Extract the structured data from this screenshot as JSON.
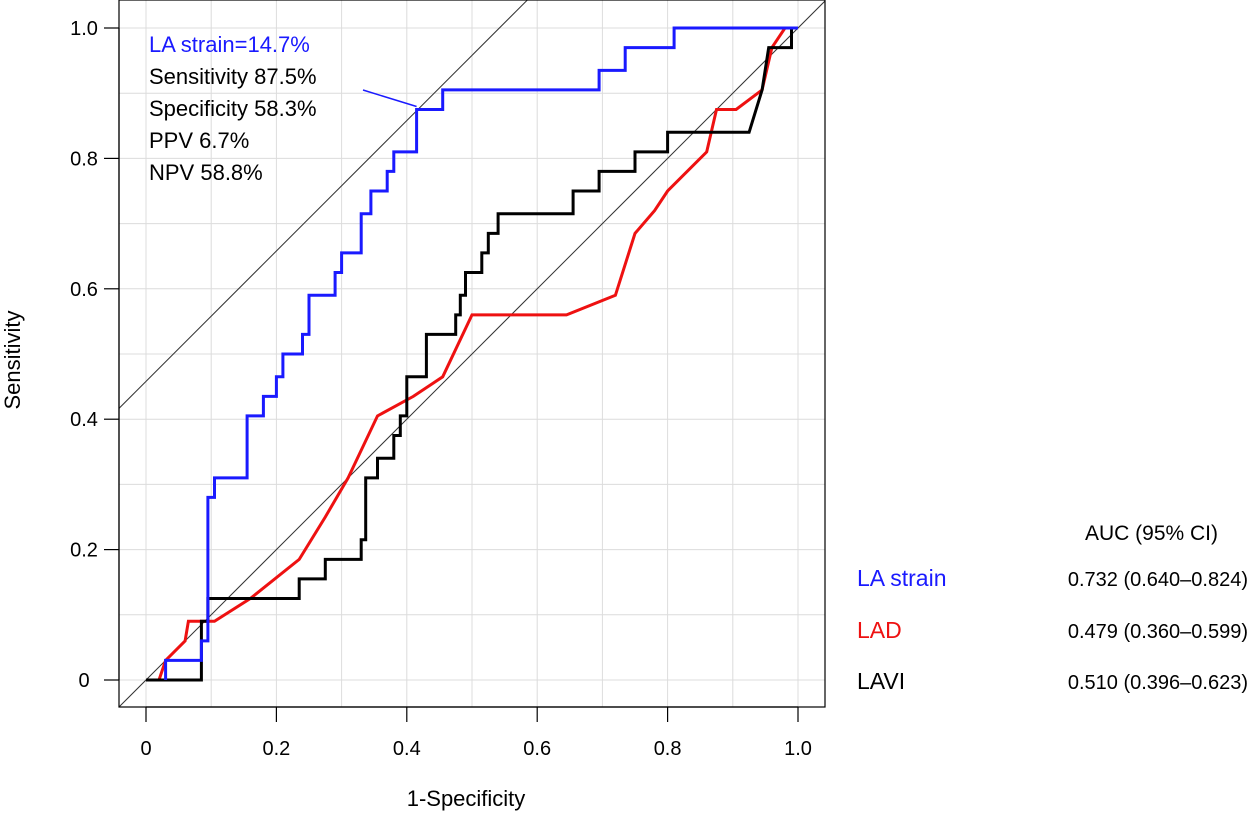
{
  "chart_data": {
    "type": "line",
    "title": "",
    "xlabel": "1-Specificity",
    "ylabel": "Sensitivity",
    "xlim": [
      0,
      1
    ],
    "ylim": [
      0,
      1
    ],
    "grid": true,
    "x_ticks": [
      "0",
      "0.2",
      "0.4",
      "0.6",
      "0.8",
      "1.0"
    ],
    "y_ticks": [
      "0",
      "0.2",
      "0.4",
      "0.6",
      "0.8",
      "1.0"
    ],
    "x_tick_values": [
      0,
      0.2,
      0.4,
      0.6,
      0.8,
      1.0
    ],
    "y_tick_values": [
      0,
      0.2,
      0.4,
      0.6,
      0.8,
      1.0
    ],
    "reference_lines": [
      {
        "name": "diagonal",
        "intercept": 0,
        "slope": 1
      },
      {
        "name": "tangent",
        "intercept": 0.458,
        "slope": 1
      }
    ],
    "series": [
      {
        "name": "LA strain",
        "color": "#1a1aff",
        "points": [
          [
            0.03,
            0
          ],
          [
            0.03,
            0.03
          ],
          [
            0.085,
            0.03
          ],
          [
            0.085,
            0.06
          ],
          [
            0.095,
            0.06
          ],
          [
            0.095,
            0.28
          ],
          [
            0.105,
            0.28
          ],
          [
            0.105,
            0.31
          ],
          [
            0.155,
            0.31
          ],
          [
            0.155,
            0.405
          ],
          [
            0.18,
            0.405
          ],
          [
            0.18,
            0.435
          ],
          [
            0.2,
            0.435
          ],
          [
            0.2,
            0.465
          ],
          [
            0.21,
            0.465
          ],
          [
            0.21,
            0.5
          ],
          [
            0.24,
            0.5
          ],
          [
            0.24,
            0.53
          ],
          [
            0.25,
            0.53
          ],
          [
            0.25,
            0.59
          ],
          [
            0.29,
            0.59
          ],
          [
            0.29,
            0.625
          ],
          [
            0.3,
            0.625
          ],
          [
            0.3,
            0.655
          ],
          [
            0.33,
            0.655
          ],
          [
            0.33,
            0.715
          ],
          [
            0.345,
            0.715
          ],
          [
            0.345,
            0.75
          ],
          [
            0.37,
            0.75
          ],
          [
            0.37,
            0.78
          ],
          [
            0.38,
            0.78
          ],
          [
            0.38,
            0.81
          ],
          [
            0.415,
            0.81
          ],
          [
            0.415,
            0.875
          ],
          [
            0.455,
            0.875
          ],
          [
            0.455,
            0.905
          ],
          [
            0.695,
            0.905
          ],
          [
            0.695,
            0.935
          ],
          [
            0.735,
            0.935
          ],
          [
            0.735,
            0.97
          ],
          [
            0.81,
            0.97
          ],
          [
            0.81,
            1.0
          ],
          [
            1.0,
            1.0
          ]
        ]
      },
      {
        "name": "LAD",
        "color": "#ee1111",
        "points": [
          [
            0.02,
            0
          ],
          [
            0.03,
            0.03
          ],
          [
            0.06,
            0.06
          ],
          [
            0.065,
            0.09
          ],
          [
            0.105,
            0.09
          ],
          [
            0.16,
            0.125
          ],
          [
            0.235,
            0.185
          ],
          [
            0.275,
            0.25
          ],
          [
            0.31,
            0.31
          ],
          [
            0.355,
            0.405
          ],
          [
            0.41,
            0.435
          ],
          [
            0.455,
            0.465
          ],
          [
            0.5,
            0.56
          ],
          [
            0.645,
            0.56
          ],
          [
            0.72,
            0.59
          ],
          [
            0.75,
            0.685
          ],
          [
            0.78,
            0.72
          ],
          [
            0.8,
            0.75
          ],
          [
            0.86,
            0.81
          ],
          [
            0.875,
            0.875
          ],
          [
            0.905,
            0.875
          ],
          [
            0.945,
            0.905
          ],
          [
            0.96,
            0.97
          ],
          [
            0.98,
            1.0
          ],
          [
            0.995,
            1.0
          ]
        ]
      },
      {
        "name": "LAVI",
        "color": "#000000",
        "points": [
          [
            0,
            0
          ],
          [
            0.085,
            0
          ],
          [
            0.085,
            0.09
          ],
          [
            0.095,
            0.09
          ],
          [
            0.095,
            0.125
          ],
          [
            0.235,
            0.125
          ],
          [
            0.235,
            0.155
          ],
          [
            0.275,
            0.155
          ],
          [
            0.275,
            0.185
          ],
          [
            0.33,
            0.185
          ],
          [
            0.33,
            0.215
          ],
          [
            0.337,
            0.215
          ],
          [
            0.337,
            0.31
          ],
          [
            0.355,
            0.31
          ],
          [
            0.355,
            0.34
          ],
          [
            0.38,
            0.34
          ],
          [
            0.38,
            0.375
          ],
          [
            0.39,
            0.375
          ],
          [
            0.39,
            0.405
          ],
          [
            0.4,
            0.405
          ],
          [
            0.4,
            0.465
          ],
          [
            0.43,
            0.465
          ],
          [
            0.43,
            0.53
          ],
          [
            0.475,
            0.53
          ],
          [
            0.475,
            0.56
          ],
          [
            0.482,
            0.56
          ],
          [
            0.482,
            0.59
          ],
          [
            0.49,
            0.59
          ],
          [
            0.49,
            0.625
          ],
          [
            0.515,
            0.625
          ],
          [
            0.515,
            0.655
          ],
          [
            0.525,
            0.655
          ],
          [
            0.525,
            0.685
          ],
          [
            0.54,
            0.685
          ],
          [
            0.54,
            0.715
          ],
          [
            0.655,
            0.715
          ],
          [
            0.655,
            0.75
          ],
          [
            0.695,
            0.75
          ],
          [
            0.695,
            0.78
          ],
          [
            0.75,
            0.78
          ],
          [
            0.75,
            0.81
          ],
          [
            0.8,
            0.81
          ],
          [
            0.8,
            0.84
          ],
          [
            0.925,
            0.84
          ],
          [
            0.945,
            0.905
          ],
          [
            0.955,
            0.97
          ],
          [
            0.99,
            0.97
          ],
          [
            0.99,
            1.0
          ],
          [
            1.0,
            1.0
          ]
        ]
      }
    ],
    "annotation": {
      "lines": [
        "LA strain=14.7%",
        "Sensitivity 87.5%",
        "Specificity 58.3%",
        "PPV 6.7%",
        "NPV 58.8%"
      ],
      "point": [
        0.415,
        0.875
      ],
      "anchor_point": [
        0.33,
        0.9
      ]
    },
    "legend": {
      "placement": "bottom-right",
      "header": "AUC (95% CI)",
      "entries": [
        {
          "label": "LA strain",
          "value": "0.732 (0.640–0.824)",
          "color": "#1a1aff"
        },
        {
          "label": "LAD",
          "value": "0.479 (0.360–0.599)",
          "color": "#ee1111"
        },
        {
          "label": "LAVI",
          "value": "0.510 (0.396–0.623)",
          "color": "#000000"
        }
      ]
    }
  }
}
